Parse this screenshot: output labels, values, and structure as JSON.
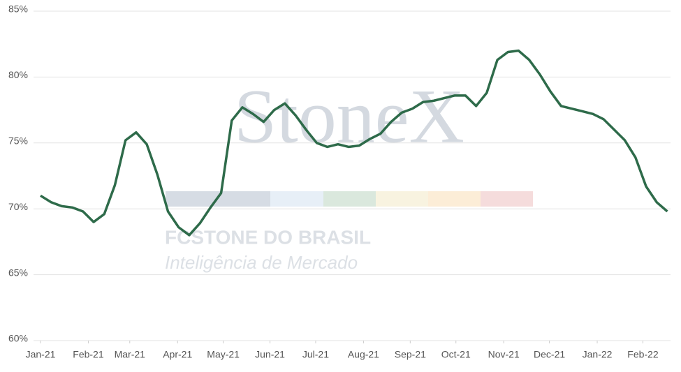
{
  "chart_data": {
    "type": "line",
    "watermark": {
      "brand": "StoneX",
      "company": "FCSTONE DO BRASIL",
      "tagline": "Inteligência de Mercado"
    },
    "x": [
      0,
      1,
      2,
      3,
      4,
      5,
      6,
      7,
      8,
      9,
      10,
      11,
      12,
      13,
      14,
      15,
      16,
      17,
      18,
      19,
      20,
      21,
      22,
      23,
      24,
      25,
      26,
      27,
      28,
      29,
      30,
      31,
      32,
      33,
      34,
      35,
      36,
      37,
      38,
      39,
      40,
      41,
      42,
      43,
      44,
      45,
      46,
      47,
      48,
      49,
      50,
      51,
      52,
      53,
      54,
      55,
      56,
      57,
      58,
      59
    ],
    "series": [
      {
        "color": "#2e6b4a",
        "values": [
          71.0,
          70.5,
          70.2,
          70.1,
          69.8,
          69.0,
          69.6,
          71.8,
          75.2,
          75.8,
          74.9,
          72.6,
          69.8,
          68.6,
          68.0,
          68.9,
          70.1,
          71.2,
          76.7,
          77.7,
          77.2,
          76.6,
          77.5,
          78.0,
          77.1,
          76.0,
          75.0,
          74.7,
          74.9,
          74.7,
          74.8,
          75.3,
          75.7,
          76.6,
          77.3,
          77.6,
          78.1,
          78.2,
          78.4,
          78.6,
          78.6,
          77.8,
          78.8,
          81.3,
          81.9,
          82.0,
          81.3,
          80.2,
          78.9,
          77.8,
          77.6,
          77.4,
          77.2,
          76.8,
          76.0,
          75.2,
          73.9,
          71.7,
          70.5,
          69.8
        ]
      }
    ],
    "xlim": [
      0,
      59.3
    ],
    "xticks": [
      {
        "value": 0,
        "label": "Jan-21"
      },
      {
        "value": 4.5,
        "label": "Feb-21"
      },
      {
        "value": 8.4,
        "label": "Mar-21"
      },
      {
        "value": 12.9,
        "label": "Apr-21"
      },
      {
        "value": 17.2,
        "label": "May-21"
      },
      {
        "value": 21.6,
        "label": "Jun-21"
      },
      {
        "value": 25.9,
        "label": "Jul-21"
      },
      {
        "value": 30.4,
        "label": "Aug-21"
      },
      {
        "value": 34.8,
        "label": "Sep-21"
      },
      {
        "value": 39.1,
        "label": "Oct-21"
      },
      {
        "value": 43.6,
        "label": "Nov-21"
      },
      {
        "value": 47.9,
        "label": "Dec-21"
      },
      {
        "value": 52.4,
        "label": "Jan-22"
      },
      {
        "value": 56.7,
        "label": "Feb-22"
      }
    ],
    "ylim": [
      60,
      85
    ],
    "yticks": [
      {
        "value": 60,
        "label": "60%"
      },
      {
        "value": 65,
        "label": "65%"
      },
      {
        "value": 70,
        "label": "70%"
      },
      {
        "value": 75,
        "label": "75%"
      },
      {
        "value": 80,
        "label": "80%"
      },
      {
        "value": 85,
        "label": "85%"
      }
    ],
    "grid": true
  }
}
